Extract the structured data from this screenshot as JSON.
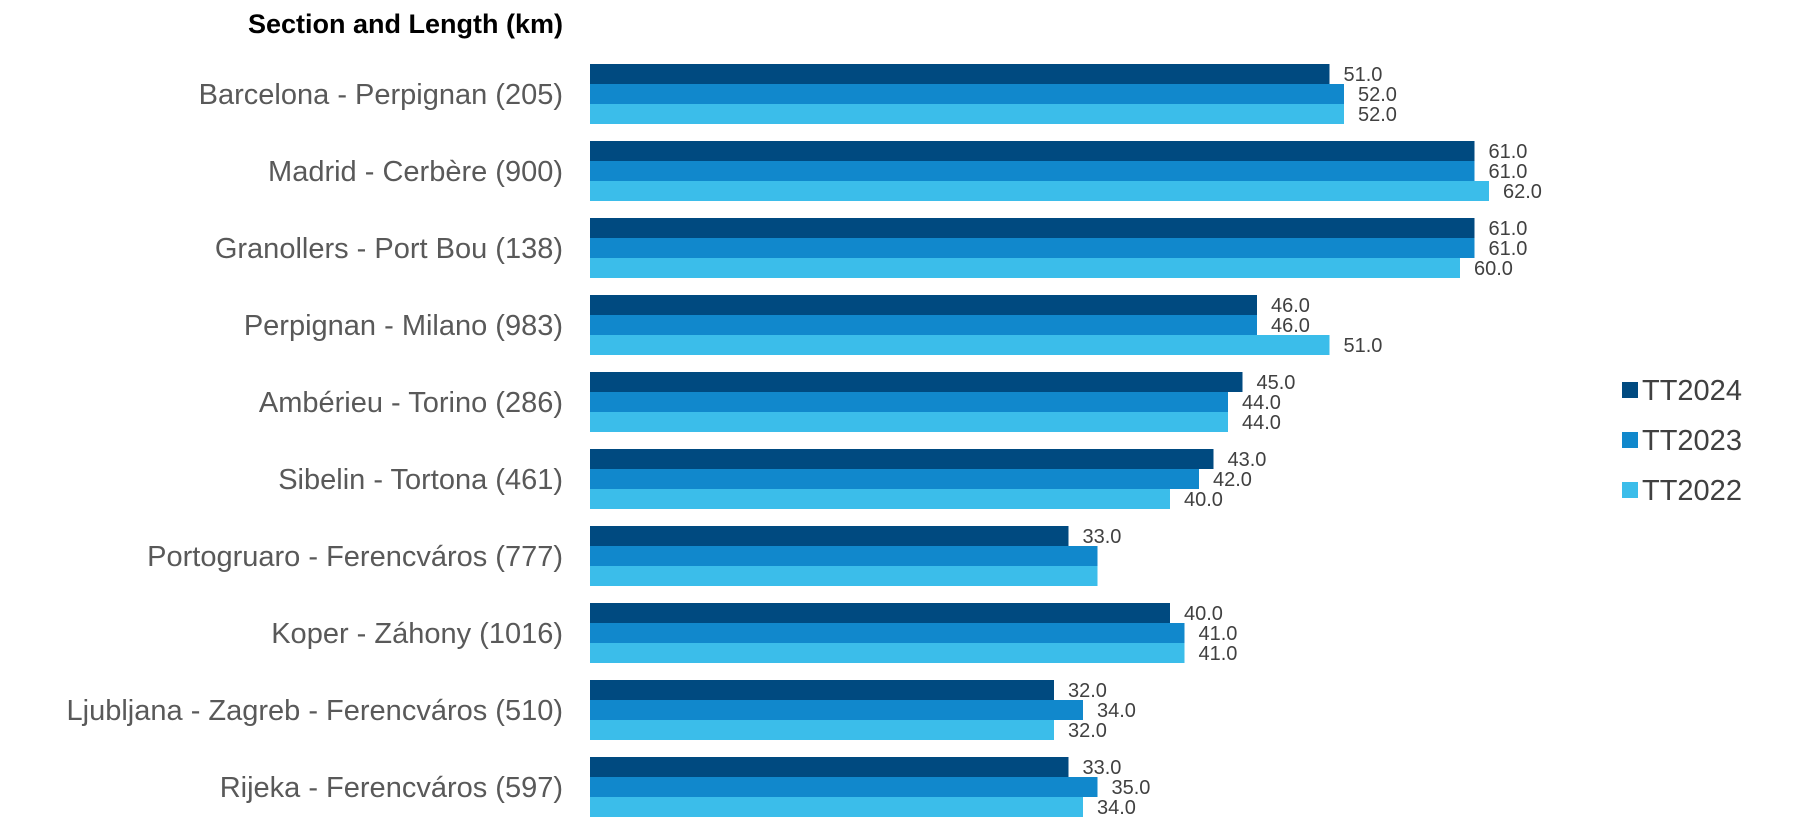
{
  "chart_data": {
    "type": "bar",
    "orientation": "horizontal",
    "title": "Section and Length (km)",
    "categories": [
      "Barcelona - Perpignan (205)",
      "Madrid - Cerbère (900)",
      "Granollers - Port Bou (138)",
      "Perpignan - Milano (983)",
      "Ambérieu - Torino (286)",
      "Sibelin - Tortona (461)",
      "Portogruaro - Ferencváros (777)",
      "Koper - Záhony (1016)",
      "Ljubljana - Zagreb - Ferencváros (510)",
      "Rijeka - Ferencváros (597)"
    ],
    "series": [
      {
        "name": "TT2024",
        "color": "#004A80",
        "values": [
          51.0,
          61.0,
          61.0,
          46.0,
          45.0,
          43.0,
          33.0,
          40.0,
          32.0,
          33.0
        ],
        "labels": [
          "51.0",
          "61.0",
          "61.0",
          "46.0",
          "45.0",
          "43.0",
          "33.0",
          "40.0",
          "32.0",
          "33.0"
        ]
      },
      {
        "name": "TT2023",
        "color": "#1188CC",
        "values": [
          52.0,
          61.0,
          61.0,
          46.0,
          44.0,
          42.0,
          35.0,
          41.0,
          34.0,
          35.0
        ],
        "labels": [
          "52.0",
          "61.0",
          "61.0",
          "46.0",
          "44.0",
          "42.0",
          "",
          "41.0",
          "34.0",
          "35.0"
        ]
      },
      {
        "name": "TT2022",
        "color": "#3BBDEA",
        "values": [
          52.0,
          62.0,
          60.0,
          51.0,
          44.0,
          40.0,
          35.0,
          41.0,
          32.0,
          34.0
        ],
        "labels": [
          "52.0",
          "62.0",
          "60.0",
          "51.0",
          "44.0",
          "40.0",
          "",
          "41.0",
          "32.0",
          "34.0"
        ]
      }
    ],
    "xlim": [
      0,
      70
    ],
    "grid": false,
    "legend_position": "right"
  }
}
